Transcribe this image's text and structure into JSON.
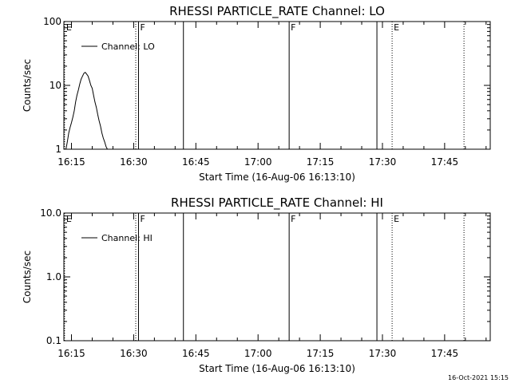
{
  "timestamp": "16-Oct-2021 15:15",
  "chart_data": [
    {
      "type": "line",
      "title": "RHESSI PARTICLE_RATE Channel: LO",
      "xlabel": "Start Time (16-Aug-06 16:13:10)",
      "ylabel": "Counts/sec",
      "yscale": "log",
      "ylim": [
        1,
        100
      ],
      "xlim": [
        "16:13:10",
        "17:56:00"
      ],
      "x_ticks": [
        "16:15",
        "16:30",
        "16:45",
        "17:00",
        "17:15",
        "17:30",
        "17:45"
      ],
      "y_ticks": [
        "1",
        "10",
        "100"
      ],
      "legend": {
        "label": "Channel: LO",
        "position": "top-left"
      },
      "series": [
        {
          "name": "Channel: LO",
          "x": [
            "16:13:40",
            "16:14:00",
            "16:14:20",
            "16:14:40",
            "16:15:00",
            "16:15:20",
            "16:15:40",
            "16:16:00",
            "16:16:20",
            "16:16:40",
            "16:17:00",
            "16:17:20",
            "16:17:40",
            "16:18:00",
            "16:18:20",
            "16:18:40",
            "16:19:00",
            "16:19:20",
            "16:19:40",
            "16:20:00",
            "16:20:20",
            "16:20:40",
            "16:21:00",
            "16:21:20",
            "16:21:40",
            "16:22:00",
            "16:22:20",
            "16:22:40",
            "16:23:00",
            "16:23:20",
            "16:23:40"
          ],
          "values": [
            1.0,
            1.3,
            1.8,
            2.2,
            2.6,
            3.2,
            4.0,
            5.5,
            7.0,
            8.5,
            10.5,
            12.5,
            14.0,
            15.5,
            16.0,
            15.0,
            14.0,
            12.0,
            10.0,
            9.0,
            7.0,
            5.5,
            4.5,
            3.5,
            2.8,
            2.3,
            1.8,
            1.5,
            1.3,
            1.1,
            1.0
          ]
        }
      ],
      "markers": [
        {
          "time": "16:13:20",
          "label": "E",
          "style": "dotted"
        },
        {
          "time": "16:30:30",
          "label": "",
          "style": "dotted"
        },
        {
          "time": "16:31:10",
          "label": "F",
          "style": "solid"
        },
        {
          "time": "16:42:00",
          "label": "",
          "style": "solid"
        },
        {
          "time": "17:07:30",
          "label": "F",
          "style": "solid"
        },
        {
          "time": "17:28:40",
          "label": "",
          "style": "solid"
        },
        {
          "time": "17:32:20",
          "label": "E",
          "style": "dotted"
        },
        {
          "time": "17:49:40",
          "label": "",
          "style": "dotted"
        }
      ]
    },
    {
      "type": "line",
      "title": "RHESSI PARTICLE_RATE Channel: HI",
      "xlabel": "Start Time (16-Aug-06 16:13:10)",
      "ylabel": "Counts/sec",
      "yscale": "log",
      "ylim": [
        0.1,
        10
      ],
      "xlim": [
        "16:13:10",
        "17:56:00"
      ],
      "x_ticks": [
        "16:15",
        "16:30",
        "16:45",
        "17:00",
        "17:15",
        "17:30",
        "17:45"
      ],
      "y_ticks": [
        "0.1",
        "1.0",
        "10.0"
      ],
      "legend": {
        "label": "Channel: HI",
        "position": "top-left"
      },
      "series": [
        {
          "name": "Channel: HI",
          "x": [],
          "values": []
        }
      ],
      "markers": [
        {
          "time": "16:13:20",
          "label": "E",
          "style": "dotted"
        },
        {
          "time": "16:30:30",
          "label": "",
          "style": "dotted"
        },
        {
          "time": "16:31:10",
          "label": "F",
          "style": "solid"
        },
        {
          "time": "16:42:00",
          "label": "",
          "style": "solid"
        },
        {
          "time": "17:07:30",
          "label": "F",
          "style": "solid"
        },
        {
          "time": "17:28:40",
          "label": "",
          "style": "solid"
        },
        {
          "time": "17:32:20",
          "label": "E",
          "style": "dotted"
        },
        {
          "time": "17:49:40",
          "label": "",
          "style": "dotted"
        }
      ]
    }
  ]
}
